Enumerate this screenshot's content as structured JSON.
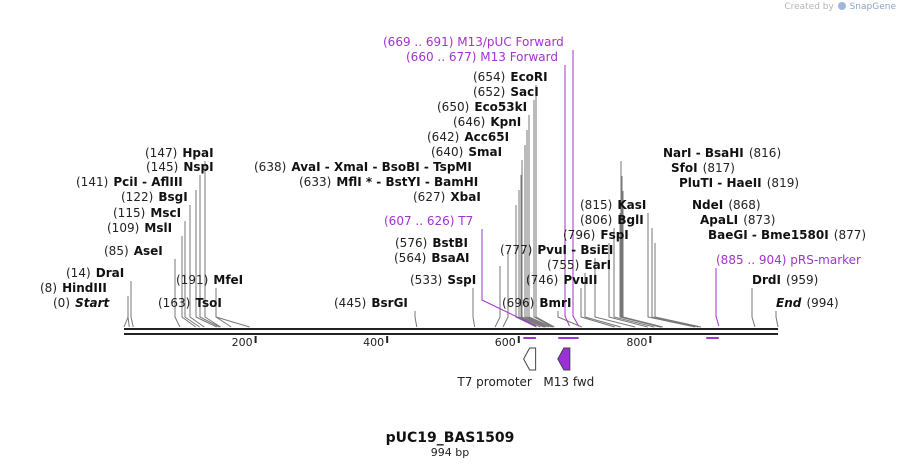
{
  "credit": {
    "prefix": "Created by",
    "brand": "SnapGene"
  },
  "sequence": {
    "name": "pUC19_BAS1509",
    "length_label": "994 bp",
    "length": 994
  },
  "axis": {
    "ticks": [
      200,
      400,
      600,
      800
    ]
  },
  "enzymes": [
    {
      "pos": "(0)",
      "name": "Start",
      "site": 0,
      "italic": true
    },
    {
      "pos": "(8)",
      "name": "HindIII",
      "site": 8
    },
    {
      "pos": "(14)",
      "name": "DraI",
      "site": 14
    },
    {
      "pos": "(85)",
      "name": "AseI",
      "site": 85
    },
    {
      "pos": "(109)",
      "name": "MslI",
      "site": 109
    },
    {
      "pos": "(115)",
      "name": "MscI",
      "site": 115
    },
    {
      "pos": "(122)",
      "name": "BsgI",
      "site": 122
    },
    {
      "pos": "(141)",
      "name": "PciI - AflIII",
      "site": 141
    },
    {
      "pos": "(145)",
      "name": "NspI",
      "site": 145
    },
    {
      "pos": "(147)",
      "name": "HpaI",
      "site": 147
    },
    {
      "pos": "(163)",
      "name": "TsoI",
      "site": 163
    },
    {
      "pos": "(191)",
      "name": "MfeI",
      "site": 191
    },
    {
      "pos": "(445)",
      "name": "BsrGI",
      "site": 445
    },
    {
      "pos": "(533)",
      "name": "SspI",
      "site": 533
    },
    {
      "pos": "(564)",
      "name": "BsaAI",
      "site": 564
    },
    {
      "pos": "(576)",
      "name": "BstBI",
      "site": 576
    },
    {
      "pos": "(627)",
      "name": "XbaI",
      "site": 627
    },
    {
      "pos": "(633)",
      "name": "MflI * - BstYI - BamHI",
      "site": 633
    },
    {
      "pos": "(638)",
      "name": "AvaI - XmaI - BsoBI - TspMI",
      "site": 638
    },
    {
      "pos": "(640)",
      "name": "SmaI",
      "site": 640
    },
    {
      "pos": "(642)",
      "name": "Acc65I",
      "site": 642
    },
    {
      "pos": "(646)",
      "name": "KpnI",
      "site": 646
    },
    {
      "pos": "(650)",
      "name": "Eco53kI",
      "site": 650
    },
    {
      "pos": "(652)",
      "name": "SacI",
      "site": 652
    },
    {
      "pos": "(654)",
      "name": "EcoRI",
      "site": 654
    },
    {
      "pos": "(696)",
      "name": "BmrI",
      "site": 696
    },
    {
      "pos": "(746)",
      "name": "PvuII",
      "site": 746
    },
    {
      "pos": "(755)",
      "name": "EarI",
      "site": 755
    },
    {
      "pos": "(777)",
      "name": "PvuI - BsiEI",
      "site": 777
    },
    {
      "pos": "(796)",
      "name": "FspI",
      "site": 796
    },
    {
      "pos": "(806)",
      "name": "BglI",
      "site": 806
    },
    {
      "pos": "(815)",
      "name": "KasI",
      "site": 815
    },
    {
      "pos": "(816)",
      "name": "NarI - BsaHI",
      "site": 816
    },
    {
      "pos": "(817)",
      "name": "SfoI",
      "site": 817
    },
    {
      "pos": "(819)",
      "name": "PluTI - HaeII",
      "site": 819
    },
    {
      "pos": "(868)",
      "name": "NdeI",
      "site": 868
    },
    {
      "pos": "(873)",
      "name": "ApaLI",
      "site": 873
    },
    {
      "pos": "(877)",
      "name": "BaeGI - Bme1580I",
      "site": 877
    },
    {
      "pos": "(959)",
      "name": "DrdI",
      "site": 959
    },
    {
      "pos": "(994)",
      "name": "End",
      "site": 994,
      "italic": true
    }
  ],
  "primers": [
    {
      "range": "(669 .. 691)",
      "name": "M13/pUC Forward",
      "start": 669,
      "end": 691
    },
    {
      "range": "(660 .. 677)",
      "name": "M13 Forward",
      "start": 660,
      "end": 677
    },
    {
      "range": "(607 .. 626)",
      "name": "T7",
      "start": 607,
      "end": 626
    },
    {
      "range": "(885 .. 904)",
      "name": "pRS-marker",
      "start": 885,
      "end": 904
    }
  ],
  "features": [
    {
      "name": "T7 promoter",
      "start": 607,
      "end": 626,
      "direction": "left",
      "color": "#ffffff"
    },
    {
      "name": "M13 fwd",
      "start": 660,
      "end": 677,
      "direction": "left",
      "color": "#9b30d9"
    }
  ],
  "colors": {
    "primer": "#a133cf",
    "backbone": "#222222",
    "line": "#666666"
  }
}
